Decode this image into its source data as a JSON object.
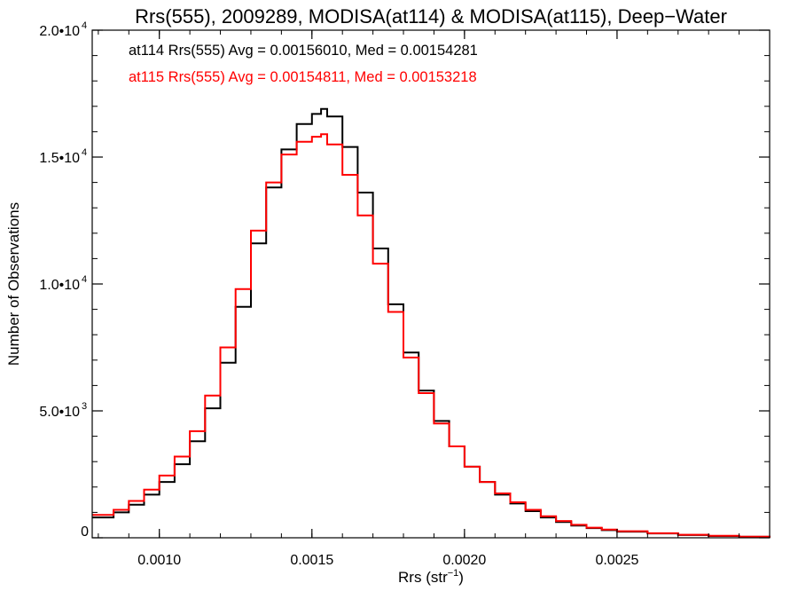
{
  "chart_data": {
    "type": "line",
    "title": "Rrs(555), 2009289, MODISA(at114) & MODISA(at115), Deep−Water",
    "xlabel_main": "Rrs (str",
    "xlabel_sup": "−1",
    "xlabel_close": ")",
    "ylabel": "Number of Observations",
    "xlim": [
      0.00078,
      0.003
    ],
    "ylim": [
      0,
      20000
    ],
    "grid": false,
    "x_ticks": [
      {
        "value": 0.001,
        "label": "0.0010"
      },
      {
        "value": 0.0015,
        "label": "0.0015"
      },
      {
        "value": 0.002,
        "label": "0.0020"
      },
      {
        "value": 0.0025,
        "label": "0.0025"
      }
    ],
    "y_ticks": [
      {
        "value": 0,
        "label": "0",
        "sup": ""
      },
      {
        "value": 5000,
        "label": "5.0•10",
        "sup": "3"
      },
      {
        "value": 10000,
        "label": "1.0•10",
        "sup": "4"
      },
      {
        "value": 15000,
        "label": "1.5•10",
        "sup": "4"
      },
      {
        "value": 20000,
        "label": "2.0•10",
        "sup": "4"
      }
    ],
    "annotations": [
      {
        "text": "at114 Rrs(555) Avg = 0.00156010, Med = 0.00154281",
        "color": "#000000"
      },
      {
        "text": "at115 Rrs(555) Avg = 0.00154811, Med = 0.00153218",
        "color": "#ff0000"
      }
    ],
    "series": [
      {
        "color": "#000000",
        "x": [
          0.00078,
          0.00085,
          0.0009,
          0.00095,
          0.001,
          0.00105,
          0.0011,
          0.00115,
          0.0012,
          0.00125,
          0.0013,
          0.00135,
          0.0014,
          0.00145,
          0.0015,
          0.00153,
          0.00155,
          0.0016,
          0.00165,
          0.0017,
          0.00175,
          0.0018,
          0.00185,
          0.0019,
          0.00195,
          0.002,
          0.00205,
          0.0021,
          0.00215,
          0.0022,
          0.00225,
          0.0023,
          0.00235,
          0.0024,
          0.00245,
          0.0025,
          0.0026,
          0.0027,
          0.0028,
          0.0029,
          0.003
        ],
        "y": [
          800,
          1000,
          1300,
          1700,
          2200,
          2900,
          3800,
          5100,
          6900,
          9100,
          11600,
          13800,
          15300,
          16300,
          16700,
          16900,
          16600,
          15400,
          13600,
          11400,
          9200,
          7300,
          5800,
          4600,
          3600,
          2800,
          2200,
          1700,
          1350,
          1050,
          800,
          620,
          480,
          380,
          300,
          240,
          170,
          110,
          70,
          40,
          0
        ]
      },
      {
        "color": "#ff0000",
        "x": [
          0.00078,
          0.00085,
          0.0009,
          0.00095,
          0.001,
          0.00105,
          0.0011,
          0.00115,
          0.0012,
          0.00125,
          0.0013,
          0.00135,
          0.0014,
          0.00145,
          0.0015,
          0.00153,
          0.00155,
          0.0016,
          0.00165,
          0.0017,
          0.00175,
          0.0018,
          0.00185,
          0.0019,
          0.00195,
          0.002,
          0.00205,
          0.0021,
          0.00215,
          0.0022,
          0.00225,
          0.0023,
          0.00235,
          0.0024,
          0.00245,
          0.0025,
          0.0026,
          0.0027,
          0.0028,
          0.0029,
          0.003
        ],
        "y": [
          900,
          1100,
          1450,
          1900,
          2450,
          3200,
          4200,
          5600,
          7500,
          9800,
          12100,
          14000,
          15100,
          15600,
          15800,
          15900,
          15500,
          14300,
          12700,
          10800,
          8900,
          7100,
          5700,
          4500,
          3600,
          2800,
          2200,
          1750,
          1400,
          1100,
          850,
          660,
          510,
          400,
          320,
          260,
          180,
          120,
          80,
          45,
          0
        ]
      }
    ]
  }
}
